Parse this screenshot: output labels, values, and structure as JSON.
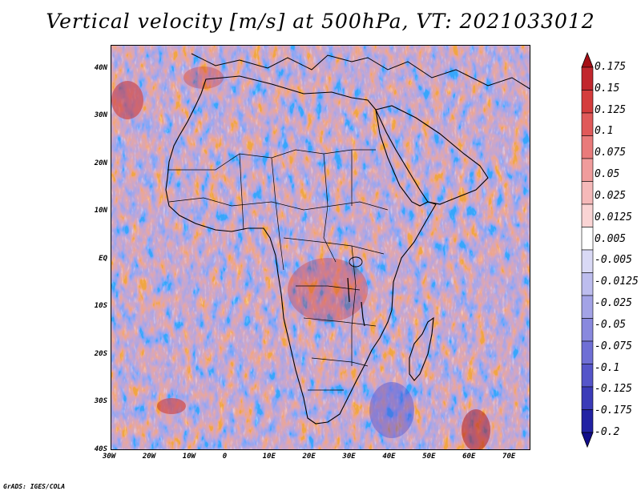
{
  "title": "Vertical velocity [m/s] at 500hPa, VT: 2021033012",
  "credit": "GrADS: IGES/COLA",
  "map": {
    "lat_labels": [
      "40N",
      "30N",
      "20N",
      "10N",
      "EQ",
      "10S",
      "20S",
      "30S",
      "40S"
    ],
    "lat_values": [
      40,
      30,
      20,
      10,
      0,
      -10,
      -20,
      -30,
      -40
    ],
    "lon_labels": [
      "30W",
      "20W",
      "10W",
      "0",
      "10E",
      "20E",
      "30E",
      "40E",
      "50E",
      "60E",
      "70E"
    ],
    "lon_values": [
      -30,
      -20,
      -10,
      0,
      10,
      20,
      30,
      40,
      50,
      60,
      70
    ],
    "lat_range": [
      -40,
      45
    ],
    "lon_range": [
      -30,
      75
    ]
  },
  "colorbar": {
    "labels": [
      "0.175",
      "0.15",
      "0.125",
      "0.1",
      "0.075",
      "0.05",
      "0.025",
      "0.0125",
      "0.005",
      "-0.005",
      "-0.0125",
      "-0.025",
      "-0.05",
      "-0.075",
      "-0.1",
      "-0.125",
      "-0.175",
      "-0.2"
    ],
    "colors": [
      "#a50f15",
      "#c1272d",
      "#d43d3d",
      "#e05a5a",
      "#e97b7b",
      "#f09c9c",
      "#f5b9b9",
      "#fad4d4",
      "#ffffff",
      "#d9d9f5",
      "#bdbdee",
      "#a3a3e6",
      "#8989de",
      "#6f6fd5",
      "#5555c9",
      "#3b3bb8",
      "#2222a3",
      "#110d8a"
    ]
  },
  "colors": {
    "up": "#c83232",
    "down": "#3c3cc8"
  }
}
